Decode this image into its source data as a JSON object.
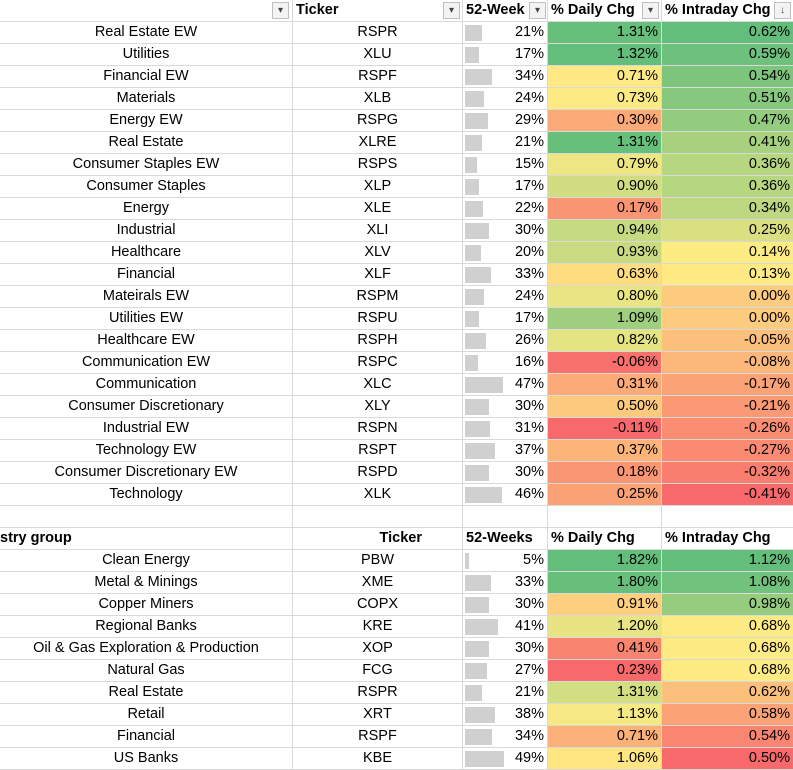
{
  "table1": {
    "headers": {
      "name": "",
      "ticker": "Ticker",
      "weeks": "52-Week",
      "daily": "% Daily Chg",
      "intraday": "% Intraday Chg"
    },
    "rows": [
      {
        "name": "Real Estate EW",
        "ticker": "RSPR",
        "wk": "21%",
        "wkv": 21,
        "d": "1.31%",
        "dv": 1.31,
        "i": "0.62%",
        "iv": 0.62
      },
      {
        "name": "Utilities",
        "ticker": "XLU",
        "wk": "17%",
        "wkv": 17,
        "d": "1.32%",
        "dv": 1.32,
        "i": "0.59%",
        "iv": 0.59
      },
      {
        "name": "Financial EW",
        "ticker": "RSPF",
        "wk": "34%",
        "wkv": 34,
        "d": "0.71%",
        "dv": 0.71,
        "i": "0.54%",
        "iv": 0.54
      },
      {
        "name": "Materials",
        "ticker": "XLB",
        "wk": "24%",
        "wkv": 24,
        "d": "0.73%",
        "dv": 0.73,
        "i": "0.51%",
        "iv": 0.51
      },
      {
        "name": "Energy EW",
        "ticker": "RSPG",
        "wk": "29%",
        "wkv": 29,
        "d": "0.30%",
        "dv": 0.3,
        "i": "0.47%",
        "iv": 0.47
      },
      {
        "name": "Real Estate",
        "ticker": "XLRE",
        "wk": "21%",
        "wkv": 21,
        "d": "1.31%",
        "dv": 1.31,
        "i": "0.41%",
        "iv": 0.41
      },
      {
        "name": "Consumer Staples EW",
        "ticker": "RSPS",
        "wk": "15%",
        "wkv": 15,
        "d": "0.79%",
        "dv": 0.79,
        "i": "0.36%",
        "iv": 0.36
      },
      {
        "name": "Consumer Staples",
        "ticker": "XLP",
        "wk": "17%",
        "wkv": 17,
        "d": "0.90%",
        "dv": 0.9,
        "i": "0.36%",
        "iv": 0.36
      },
      {
        "name": "Energy",
        "ticker": "XLE",
        "wk": "22%",
        "wkv": 22,
        "d": "0.17%",
        "dv": 0.17,
        "i": "0.34%",
        "iv": 0.34
      },
      {
        "name": "Industrial",
        "ticker": "XLI",
        "wk": "30%",
        "wkv": 30,
        "d": "0.94%",
        "dv": 0.94,
        "i": "0.25%",
        "iv": 0.25
      },
      {
        "name": "Healthcare",
        "ticker": "XLV",
        "wk": "20%",
        "wkv": 20,
        "d": "0.93%",
        "dv": 0.93,
        "i": "0.14%",
        "iv": 0.14
      },
      {
        "name": "Financial",
        "ticker": "XLF",
        "wk": "33%",
        "wkv": 33,
        "d": "0.63%",
        "dv": 0.63,
        "i": "0.13%",
        "iv": 0.13
      },
      {
        "name": "Mateirals EW",
        "ticker": "RSPM",
        "wk": "24%",
        "wkv": 24,
        "d": "0.80%",
        "dv": 0.8,
        "i": "0.00%",
        "iv": 0.0
      },
      {
        "name": "Utilities EW",
        "ticker": "RSPU",
        "wk": "17%",
        "wkv": 17,
        "d": "1.09%",
        "dv": 1.09,
        "i": "0.00%",
        "iv": 0.0
      },
      {
        "name": "Healthcare EW",
        "ticker": "RSPH",
        "wk": "26%",
        "wkv": 26,
        "d": "0.82%",
        "dv": 0.82,
        "i": "-0.05%",
        "iv": -0.05
      },
      {
        "name": "Communication EW",
        "ticker": "RSPC",
        "wk": "16%",
        "wkv": 16,
        "d": "-0.06%",
        "dv": -0.06,
        "i": "-0.08%",
        "iv": -0.08
      },
      {
        "name": "Communication",
        "ticker": "XLC",
        "wk": "47%",
        "wkv": 47,
        "d": "0.31%",
        "dv": 0.31,
        "i": "-0.17%",
        "iv": -0.17
      },
      {
        "name": "Consumer Discretionary",
        "ticker": "XLY",
        "wk": "30%",
        "wkv": 30,
        "d": "0.50%",
        "dv": 0.5,
        "i": "-0.21%",
        "iv": -0.21
      },
      {
        "name": "Industrial EW",
        "ticker": "RSPN",
        "wk": "31%",
        "wkv": 31,
        "d": "-0.11%",
        "dv": -0.11,
        "i": "-0.26%",
        "iv": -0.26
      },
      {
        "name": "Technology EW",
        "ticker": "RSPT",
        "wk": "37%",
        "wkv": 37,
        "d": "0.37%",
        "dv": 0.37,
        "i": "-0.27%",
        "iv": -0.27
      },
      {
        "name": "Consumer Discretionary EW",
        "ticker": "RSPD",
        "wk": "30%",
        "wkv": 30,
        "d": "0.18%",
        "dv": 0.18,
        "i": "-0.32%",
        "iv": -0.32
      },
      {
        "name": "Technology",
        "ticker": "XLK",
        "wk": "46%",
        "wkv": 46,
        "d": "0.25%",
        "dv": 0.25,
        "i": "-0.41%",
        "iv": -0.41
      }
    ]
  },
  "table2": {
    "headers": {
      "name": "stry group",
      "ticker": "Ticker",
      "weeks": "52-Weeks",
      "daily": "% Daily Chg",
      "intraday": "% Intraday Chg"
    },
    "rows": [
      {
        "name": "Clean Energy",
        "ticker": "PBW",
        "wk": "5%",
        "wkv": 5,
        "d": "1.82%",
        "dv": 1.82,
        "i": "1.12%",
        "iv": 1.12
      },
      {
        "name": "Metal & Minings",
        "ticker": "XME",
        "wk": "33%",
        "wkv": 33,
        "d": "1.80%",
        "dv": 1.8,
        "i": "1.08%",
        "iv": 1.08
      },
      {
        "name": "Copper Miners",
        "ticker": "COPX",
        "wk": "30%",
        "wkv": 30,
        "d": "0.91%",
        "dv": 0.91,
        "i": "0.98%",
        "iv": 0.98
      },
      {
        "name": "Regional Banks",
        "ticker": "KRE",
        "wk": "41%",
        "wkv": 41,
        "d": "1.20%",
        "dv": 1.2,
        "i": "0.68%",
        "iv": 0.68
      },
      {
        "name": "Oil & Gas Exploration & Production",
        "ticker": "XOP",
        "wk": "30%",
        "wkv": 30,
        "d": "0.41%",
        "dv": 0.41,
        "i": "0.68%",
        "iv": 0.68
      },
      {
        "name": "Natural Gas",
        "ticker": "FCG",
        "wk": "27%",
        "wkv": 27,
        "d": "0.23%",
        "dv": 0.23,
        "i": "0.68%",
        "iv": 0.68
      },
      {
        "name": "Real Estate",
        "ticker": "RSPR",
        "wk": "21%",
        "wkv": 21,
        "d": "1.31%",
        "dv": 1.31,
        "i": "0.62%",
        "iv": 0.62
      },
      {
        "name": "Retail",
        "ticker": "XRT",
        "wk": "38%",
        "wkv": 38,
        "d": "1.13%",
        "dv": 1.13,
        "i": "0.58%",
        "iv": 0.58
      },
      {
        "name": "Financial",
        "ticker": "RSPF",
        "wk": "34%",
        "wkv": 34,
        "d": "0.71%",
        "dv": 0.71,
        "i": "0.54%",
        "iv": 0.54
      },
      {
        "name": "US Banks",
        "ticker": "KBE",
        "wk": "49%",
        "wkv": 49,
        "d": "1.06%",
        "dv": 1.06,
        "i": "0.50%",
        "iv": 0.5
      }
    ]
  },
  "filter_icons": {
    "dropdown": "filter-dropdown-icon",
    "sorted": "sort-descending-filter-icon"
  },
  "colors": {
    "green": "#63be7b",
    "yellow": "#ffeb84",
    "red": "#f8696b",
    "bar": "#d0d0d0",
    "grid": "#d9d9d9"
  }
}
